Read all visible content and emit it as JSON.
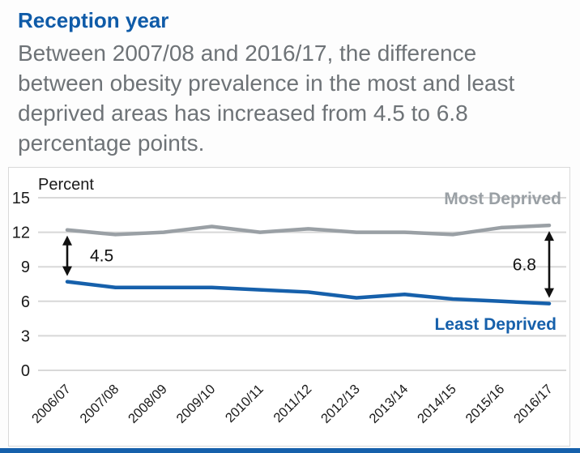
{
  "header": {
    "title": "Reception year",
    "description": "Between 2007/08 and 2016/17, the difference between obesity prevalence in the most and least deprived areas has increased from 4.5 to 6.8 percentage points."
  },
  "colors": {
    "title_blue": "#0f5ba8",
    "body_gray": "#6e7377",
    "axis_text": "#1a1a1a",
    "gridline": "#d8d8d8",
    "series_most_deprived": "#9aa0a5",
    "series_least_deprived": "#1660ab",
    "annotation_black": "#111111",
    "footer_bar": "#1660ab"
  },
  "chart_data": {
    "type": "line",
    "unit_label": "Percent",
    "categories": [
      "2006/07",
      "2007/08",
      "2008/09",
      "2009/10",
      "2010/11",
      "2011/12",
      "2012/13",
      "2013/14",
      "2014/15",
      "2015/16",
      "2016/17"
    ],
    "series": [
      {
        "name": "Most Deprived",
        "color_key": "series_most_deprived",
        "values": [
          12.2,
          11.8,
          12.0,
          12.5,
          12.0,
          12.3,
          12.0,
          12.0,
          11.8,
          12.4,
          12.6
        ]
      },
      {
        "name": "Least Deprived",
        "color_key": "series_least_deprived",
        "values": [
          7.7,
          7.2,
          7.2,
          7.2,
          7.0,
          6.8,
          6.3,
          6.6,
          6.2,
          6.0,
          5.8
        ]
      }
    ],
    "yticks": [
      0,
      3,
      6,
      9,
      12,
      15
    ],
    "ylim": [
      0,
      15
    ],
    "grid": true,
    "legend_position": "inline-end-labels",
    "annotations": [
      {
        "label": "4.5",
        "x_index": 0,
        "top_series": 0,
        "bottom_series": 1,
        "label_side": "right"
      },
      {
        "label": "6.8",
        "x_index": 10,
        "top_series": 0,
        "bottom_series": 1,
        "label_side": "left"
      }
    ]
  }
}
